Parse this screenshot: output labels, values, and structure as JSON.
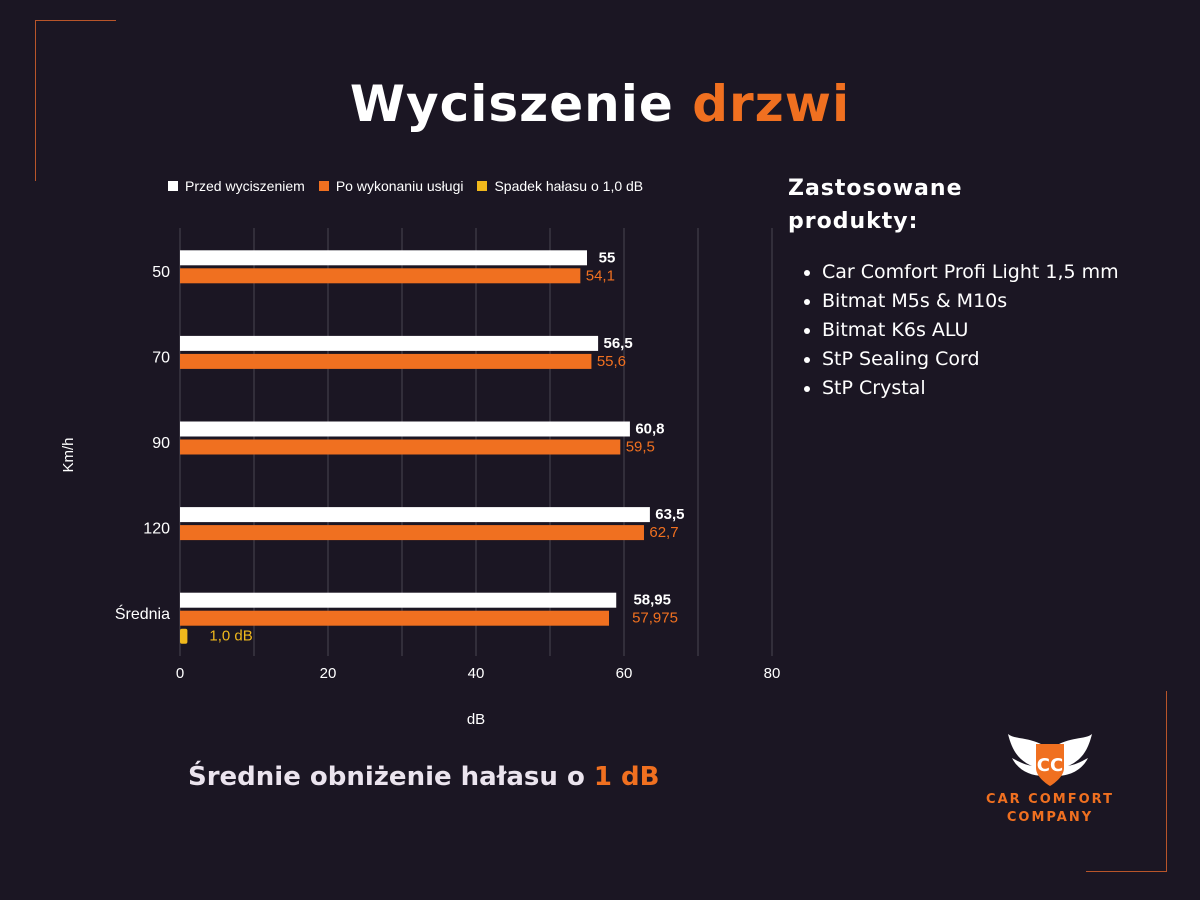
{
  "title": {
    "part1": "Wyciszenie",
    "part2": "drzwi"
  },
  "colors": {
    "background": "#1b1623",
    "white": "#ffffff",
    "orange": "#f07020",
    "yellow": "#f0b81c",
    "grid": "#4a4552"
  },
  "chart_data": {
    "type": "bar",
    "orientation": "horizontal",
    "categories": [
      "50",
      "70",
      "90",
      "120",
      "Średnia"
    ],
    "series": [
      {
        "name": "Przed wyciszeniem",
        "color": "#ffffff",
        "values": [
          55,
          56.5,
          60.8,
          63.5,
          58.95
        ],
        "labels": [
          "55",
          "56,5",
          "60,8",
          "63,5",
          "58,95"
        ]
      },
      {
        "name": "Po wykonaniu usługi",
        "color": "#f07020",
        "values": [
          54.1,
          55.6,
          59.5,
          62.7,
          57.975
        ],
        "labels": [
          "54,1",
          "55,6",
          "59,5",
          "62,7",
          "57,975"
        ]
      },
      {
        "name": "Spadek hałasu o 1,0 dB",
        "color": "#f0b81c",
        "values": [
          null,
          null,
          null,
          null,
          1.0
        ],
        "labels": [
          "",
          "",
          "",
          "",
          "1,0 dB"
        ]
      }
    ],
    "xlabel": "dB",
    "ylabel": "Km/h",
    "xlim": [
      0,
      80
    ],
    "xticks": [
      "0",
      "20",
      "40",
      "60",
      "80"
    ],
    "grid": true,
    "legend": "top"
  },
  "summary": {
    "text": "Średnie obniżenie hałasu o",
    "highlight": "1 dB"
  },
  "products": {
    "heading_line1": "Zastosowane",
    "heading_line2": "produkty:",
    "items": [
      "Car Comfort Profi Light 1,5 mm",
      "Bitmat M5s & M10s",
      "Bitmat K6s ALU",
      "StP Sealing Cord",
      "StP Crystal"
    ]
  },
  "logo": {
    "line1": "CAR COMFORT",
    "line2": "COMPANY",
    "mark": "CC"
  }
}
